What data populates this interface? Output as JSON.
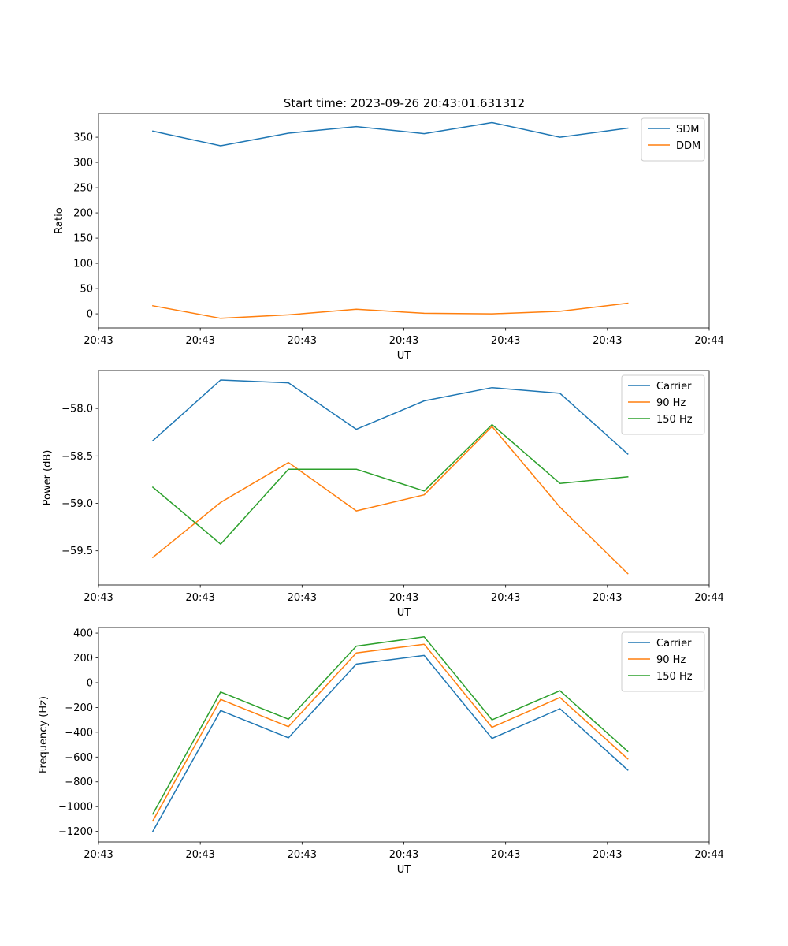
{
  "figure_title": "Start time: 2023-09-26 20:43:01.631312",
  "chart_data": [
    {
      "type": "line",
      "title": "Start time: 2023-09-26 20:43:01.631312",
      "xlabel": "UT",
      "ylabel": "Ratio",
      "x": [
        1,
        2,
        3,
        4,
        5,
        6,
        7,
        8
      ],
      "xlim": [
        0.2,
        9.2
      ],
      "x_ticks": [
        0.2,
        1.7,
        3.2,
        4.7,
        6.2,
        7.7,
        9.2
      ],
      "x_tick_labels": [
        "20:43",
        "20:43",
        "20:43",
        "20:43",
        "20:43",
        "20:43",
        "20:44"
      ],
      "ylim": [
        -28,
        397
      ],
      "y_ticks": [
        0,
        50,
        100,
        150,
        200,
        250,
        300,
        350
      ],
      "y_tick_labels": [
        "0",
        "50",
        "100",
        "150",
        "200",
        "250",
        "300",
        "350"
      ],
      "legend": "top-right",
      "series": [
        {
          "name": "SDM",
          "color": "#1f77b4",
          "values": [
            362,
            333,
            358,
            371,
            357,
            379,
            350,
            368
          ]
        },
        {
          "name": "DDM",
          "color": "#ff7f0e",
          "values": [
            16,
            -9,
            -2,
            9,
            1,
            0,
            5,
            21
          ]
        }
      ]
    },
    {
      "type": "line",
      "title": "",
      "xlabel": "UT",
      "ylabel": "Power (dB)",
      "x": [
        1,
        2,
        3,
        4,
        5,
        6,
        7,
        8
      ],
      "xlim": [
        0.2,
        9.2
      ],
      "x_ticks": [
        0.2,
        1.7,
        3.2,
        4.7,
        6.2,
        7.7,
        9.2
      ],
      "x_tick_labels": [
        "20:43",
        "20:43",
        "20:43",
        "20:43",
        "20:43",
        "20:43",
        "20:44"
      ],
      "ylim": [
        -59.86,
        -57.6
      ],
      "y_ticks": [
        -59.5,
        -59.0,
        -58.5,
        -58.0
      ],
      "y_tick_labels": [
        "−59.5",
        "−59.0",
        "−58.5",
        "−58.0"
      ],
      "legend": "top-right",
      "series": [
        {
          "name": "Carrier",
          "color": "#1f77b4",
          "values": [
            -58.34,
            -57.7,
            -57.73,
            -58.22,
            -57.92,
            -57.78,
            -57.84,
            -58.48
          ]
        },
        {
          "name": "90 Hz",
          "color": "#ff7f0e",
          "values": [
            -59.57,
            -58.99,
            -58.57,
            -59.08,
            -58.91,
            -58.19,
            -59.04,
            -59.74
          ]
        },
        {
          "name": "150 Hz",
          "color": "#2ca02c",
          "values": [
            -58.83,
            -59.43,
            -58.64,
            -58.64,
            -58.87,
            -58.17,
            -58.79,
            -58.72
          ]
        }
      ]
    },
    {
      "type": "line",
      "title": "",
      "xlabel": "UT",
      "ylabel": "Frequency (Hz)",
      "x": [
        1,
        2,
        3,
        4,
        5,
        6,
        7,
        8
      ],
      "xlim": [
        0.2,
        9.2
      ],
      "x_ticks": [
        0.2,
        1.7,
        3.2,
        4.7,
        6.2,
        7.7,
        9.2
      ],
      "x_tick_labels": [
        "20:43",
        "20:43",
        "20:43",
        "20:43",
        "20:43",
        "20:43",
        "20:44"
      ],
      "ylim": [
        -1285,
        445
      ],
      "y_ticks": [
        -1200,
        -1000,
        -800,
        -600,
        -400,
        -200,
        0,
        200,
        400
      ],
      "y_tick_labels": [
        "−1200",
        "−1000",
        "−800",
        "−600",
        "−400",
        "−200",
        "0",
        "200",
        "400"
      ],
      "legend": "top-right",
      "series": [
        {
          "name": "Carrier",
          "color": "#1f77b4",
          "values": [
            -1200,
            -225,
            -445,
            150,
            220,
            -450,
            -210,
            -705
          ]
        },
        {
          "name": "90 Hz",
          "color": "#ff7f0e",
          "values": [
            -1115,
            -135,
            -355,
            240,
            310,
            -360,
            -120,
            -615
          ]
        },
        {
          "name": "150 Hz",
          "color": "#2ca02c",
          "values": [
            -1060,
            -75,
            -295,
            295,
            370,
            -300,
            -65,
            -555
          ]
        }
      ]
    }
  ]
}
